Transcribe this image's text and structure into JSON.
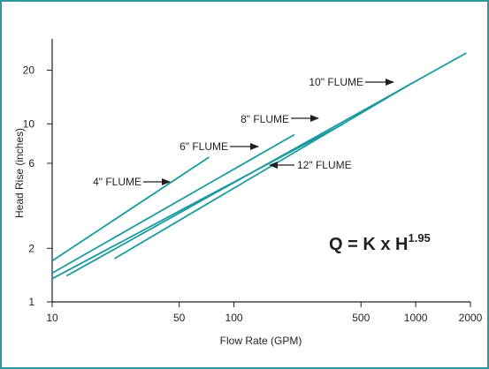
{
  "colors": {
    "frame_border": "#2a9a9c",
    "line": "#1a9a9f",
    "axis": "#231f20",
    "text": "#231f20"
  },
  "chart_data": {
    "type": "line",
    "xlabel": "Flow Rate (GPM)",
    "ylabel": "Head Rise (inches)",
    "x_scale": "log",
    "y_scale": "log",
    "xlim": [
      10,
      2000
    ],
    "ylim": [
      1,
      30
    ],
    "x_ticks": [
      10,
      50,
      100,
      500,
      1000,
      2000
    ],
    "x_tick_labels": [
      "10",
      "50",
      "100",
      "500",
      "1000",
      "2000"
    ],
    "y_ticks": [
      1,
      2,
      6,
      10,
      20
    ],
    "y_tick_labels": [
      "1",
      "2",
      "6",
      "10",
      "20"
    ],
    "grid": false,
    "annotation": {
      "formula_main": "Q = K x H",
      "formula_exp": "1.95"
    },
    "series": [
      {
        "name": "4\" FLUME",
        "x": [
          10,
          73
        ],
        "y": [
          1.7,
          6.5
        ]
      },
      {
        "name": "6\" FLUME",
        "x": [
          10,
          215
        ],
        "y": [
          1.45,
          8.7
        ]
      },
      {
        "name": "8\" FLUME",
        "x": [
          10,
          400
        ],
        "y": [
          1.35,
          10
        ]
      },
      {
        "name": "10\" FLUME",
        "x": [
          12,
          1900
        ],
        "y": [
          1.4,
          25
        ]
      },
      {
        "name": "12\" FLUME",
        "x": [
          22,
          960
        ],
        "y": [
          1.75,
          17
        ]
      }
    ],
    "labels": [
      {
        "series": 0,
        "text": "4\" FLUME",
        "arrow": "right"
      },
      {
        "series": 1,
        "text": "6\" FLUME",
        "arrow": "right"
      },
      {
        "series": 2,
        "text": "8\" FLUME",
        "arrow": "right"
      },
      {
        "series": 3,
        "text": "10\" FLUME",
        "arrow": "right"
      },
      {
        "series": 4,
        "text": "12\" FLUME",
        "arrow": "left"
      }
    ]
  }
}
